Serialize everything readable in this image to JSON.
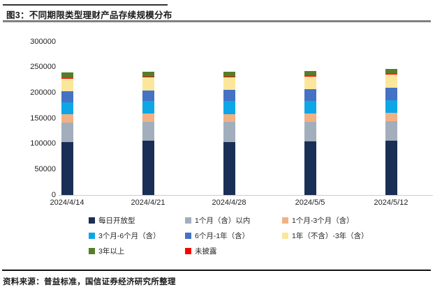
{
  "header": {
    "title": "图3：不同期限类型理财产品存续规模分布"
  },
  "footer": {
    "source": "资料来源：普益标准，国信证券经济研究所整理"
  },
  "chart_data": {
    "type": "bar",
    "stacked": true,
    "title": "不同期限类型理财产品存续规模分布",
    "xlabel": "",
    "ylabel": "",
    "ylim": [
      0,
      300000
    ],
    "y_ticks": [
      0,
      50000,
      100000,
      150000,
      200000,
      250000,
      300000
    ],
    "grid": false,
    "legend_position": "bottom",
    "categories": [
      "2024/4/14",
      "2024/4/21",
      "2024/4/28",
      "2024/5/5",
      "2024/5/12"
    ],
    "series": [
      {
        "name": "每日开放型",
        "color": "#1A2F55",
        "values": [
          104000,
          106000,
          104000,
          105000,
          107000
        ]
      },
      {
        "name": "1个月（含）以内",
        "color": "#A2AEBB",
        "values": [
          38000,
          37000,
          39500,
          38500,
          38000
        ]
      },
      {
        "name": "1个月-3个月（含）",
        "color": "#F2B183",
        "values": [
          16000,
          16500,
          15000,
          15500,
          16000
        ]
      },
      {
        "name": "3个月-6个月（含）",
        "color": "#0DA7E8",
        "values": [
          24000,
          25000,
          25500,
          25000,
          25000
        ]
      },
      {
        "name": "6个月-1年（含）",
        "color": "#4472C4",
        "values": [
          21000,
          19500,
          22000,
          23000,
          24000
        ]
      },
      {
        "name": "1年（不含）-3年（含）",
        "color": "#FBE79B",
        "values": [
          26000,
          27000,
          25500,
          26000,
          27000
        ]
      },
      {
        "name": "未披露",
        "color": "#FE0000",
        "values": [
          400,
          400,
          400,
          400,
          400
        ]
      },
      {
        "name": "3年以上",
        "color": "#567D2B",
        "values": [
          10000,
          10000,
          10000,
          9500,
          10000
        ]
      }
    ],
    "legend_order": [
      0,
      1,
      2,
      3,
      4,
      5,
      7,
      6
    ]
  }
}
